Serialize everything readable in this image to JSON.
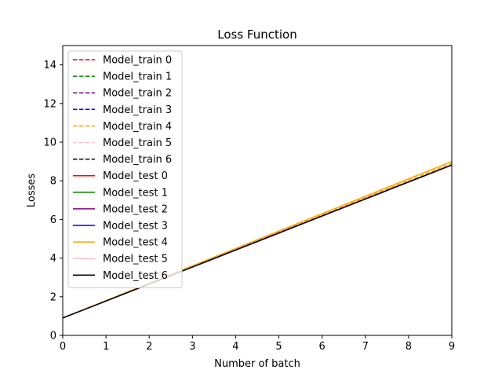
{
  "chart_data": {
    "type": "line",
    "title": "Loss Function",
    "xlabel": "Number of batch",
    "ylabel": "Losses",
    "xlim": [
      0,
      9
    ],
    "ylim": [
      0,
      15
    ],
    "xticks": [
      0,
      1,
      2,
      3,
      4,
      5,
      6,
      7,
      8,
      9
    ],
    "yticks": [
      0,
      2,
      4,
      6,
      8,
      10,
      12,
      14
    ],
    "grid": false,
    "legend_position": "upper-left",
    "x": [
      0,
      1,
      2,
      3,
      4,
      5,
      6,
      7,
      8,
      9
    ],
    "series": [
      {
        "name": "Model_train 0",
        "color": "#ff0000",
        "style": "dashed",
        "values": [
          0.9,
          1.78,
          2.66,
          3.54,
          4.42,
          5.3,
          6.18,
          7.06,
          7.94,
          8.82
        ]
      },
      {
        "name": "Model_train 1",
        "color": "#008000",
        "style": "dashed",
        "values": [
          0.9,
          1.78,
          2.66,
          3.54,
          4.42,
          5.3,
          6.18,
          7.06,
          7.94,
          8.82
        ]
      },
      {
        "name": "Model_train 2",
        "color": "#800080",
        "style": "dashed",
        "values": [
          0.9,
          1.78,
          2.66,
          3.54,
          4.42,
          5.3,
          6.18,
          7.06,
          7.94,
          8.82
        ]
      },
      {
        "name": "Model_train 3",
        "color": "#0000ff",
        "style": "dashed",
        "values": [
          0.9,
          1.78,
          2.66,
          3.54,
          4.42,
          5.3,
          6.18,
          7.06,
          7.94,
          8.82
        ]
      },
      {
        "name": "Model_train 4",
        "color": "#ffa500",
        "style": "dashed",
        "values": [
          0.9,
          1.79,
          2.68,
          3.57,
          4.46,
          5.35,
          6.24,
          7.13,
          8.02,
          8.91
        ]
      },
      {
        "name": "Model_train 5",
        "color": "#ffc0cb",
        "style": "dashed",
        "values": [
          0.9,
          1.78,
          2.66,
          3.54,
          4.42,
          5.3,
          6.18,
          7.06,
          7.94,
          8.82
        ]
      },
      {
        "name": "Model_train 6",
        "color": "#000000",
        "style": "dashed",
        "values": [
          0.9,
          1.78,
          2.66,
          3.54,
          4.42,
          5.3,
          6.18,
          7.06,
          7.94,
          8.82
        ]
      },
      {
        "name": "Model_test 0",
        "color": "#ff0000",
        "style": "solid",
        "values": [
          0.9,
          1.78,
          2.66,
          3.54,
          4.42,
          5.3,
          6.18,
          7.06,
          7.94,
          8.82
        ]
      },
      {
        "name": "Model_test 1",
        "color": "#008000",
        "style": "solid",
        "values": [
          0.9,
          1.78,
          2.66,
          3.54,
          4.42,
          5.3,
          6.18,
          7.06,
          7.94,
          8.82
        ]
      },
      {
        "name": "Model_test 2",
        "color": "#800080",
        "style": "solid",
        "values": [
          0.9,
          1.78,
          2.66,
          3.54,
          4.42,
          5.3,
          6.18,
          7.06,
          7.94,
          8.82
        ]
      },
      {
        "name": "Model_test 3",
        "color": "#0000ff",
        "style": "solid",
        "values": [
          0.9,
          1.78,
          2.66,
          3.54,
          4.42,
          5.3,
          6.18,
          7.06,
          7.94,
          8.82
        ]
      },
      {
        "name": "Model_test 4",
        "color": "#ffa500",
        "style": "solid",
        "values": [
          0.9,
          1.8,
          2.7,
          3.6,
          4.5,
          5.4,
          6.3,
          7.2,
          8.1,
          9.0
        ]
      },
      {
        "name": "Model_test 5",
        "color": "#ffc0cb",
        "style": "solid",
        "values": [
          0.9,
          1.78,
          2.66,
          3.54,
          4.42,
          5.3,
          6.18,
          7.06,
          7.94,
          8.82
        ]
      },
      {
        "name": "Model_test 6",
        "color": "#000000",
        "style": "solid",
        "values": [
          0.9,
          1.78,
          2.66,
          3.54,
          4.42,
          5.3,
          6.18,
          7.06,
          7.94,
          8.82
        ]
      }
    ]
  }
}
